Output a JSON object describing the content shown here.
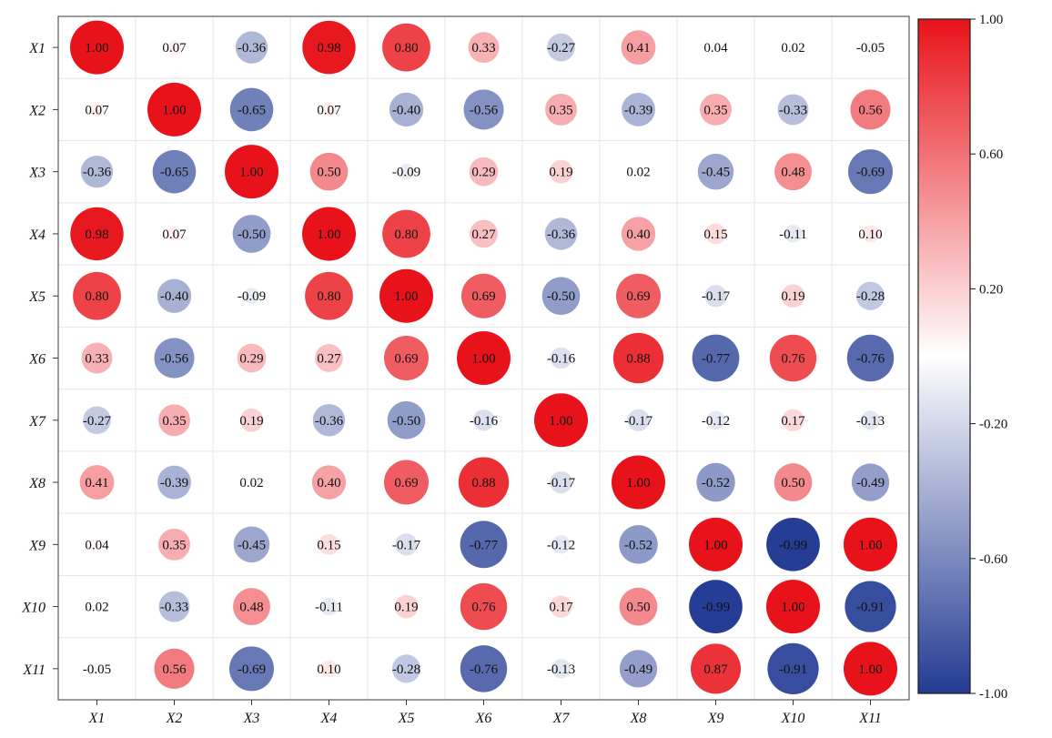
{
  "chart_data": {
    "type": "heatmap",
    "subtype": "correlation-circle-matrix",
    "title": "",
    "xlabel": "",
    "ylabel": "",
    "row_labels": [
      "X1",
      "X2",
      "X3",
      "X4",
      "X5",
      "X6",
      "X7",
      "X8",
      "X9",
      "X10",
      "X11"
    ],
    "col_labels": [
      "X1",
      "X2",
      "X3",
      "X4",
      "X5",
      "X6",
      "X7",
      "X8",
      "X9",
      "X10",
      "X11"
    ],
    "values": [
      [
        1.0,
        0.07,
        -0.36,
        0.98,
        0.8,
        0.33,
        -0.27,
        0.41,
        0.04,
        0.02,
        -0.05
      ],
      [
        0.07,
        1.0,
        -0.65,
        0.07,
        -0.4,
        -0.56,
        0.35,
        -0.39,
        0.35,
        -0.33,
        0.56
      ],
      [
        -0.36,
        -0.65,
        1.0,
        0.5,
        -0.09,
        0.29,
        0.19,
        0.02,
        -0.45,
        0.48,
        -0.69
      ],
      [
        0.98,
        0.07,
        -0.5,
        1.0,
        0.8,
        0.27,
        -0.36,
        0.4,
        0.15,
        -0.11,
        0.1
      ],
      [
        0.8,
        -0.4,
        -0.09,
        0.8,
        1.0,
        0.69,
        -0.5,
        0.69,
        -0.17,
        0.19,
        -0.28
      ],
      [
        0.33,
        -0.56,
        0.29,
        0.27,
        0.69,
        1.0,
        -0.16,
        0.88,
        -0.77,
        0.76,
        -0.76
      ],
      [
        -0.27,
        0.35,
        0.19,
        -0.36,
        -0.5,
        -0.16,
        1.0,
        -0.17,
        -0.12,
        0.17,
        -0.13
      ],
      [
        0.41,
        -0.39,
        0.02,
        0.4,
        0.69,
        0.88,
        -0.17,
        1.0,
        -0.52,
        0.5,
        -0.49
      ],
      [
        0.04,
        0.35,
        -0.45,
        0.15,
        -0.17,
        -0.77,
        -0.12,
        -0.52,
        1.0,
        -0.99,
        1.0
      ],
      [
        0.02,
        -0.33,
        0.48,
        -0.11,
        0.19,
        0.76,
        0.17,
        0.5,
        -0.99,
        1.0,
        -0.91
      ],
      [
        -0.05,
        0.56,
        -0.69,
        0.1,
        -0.28,
        -0.76,
        -0.13,
        -0.49,
        0.87,
        -0.91,
        1.0
      ]
    ],
    "value_labels": [
      [
        "1.00",
        "0.07",
        "-0.36",
        "0.98",
        "0.80",
        "0.33",
        "-0.27",
        "0.41",
        "0.04",
        "0.02",
        "-0.05"
      ],
      [
        "0.07",
        "1.00",
        "-0.65",
        "0.07",
        "-0.40",
        "-0.56",
        "0.35",
        "-0.39",
        "0.35",
        "-0.33",
        "0.56"
      ],
      [
        "-0.36",
        "-0.65",
        "1.00",
        "0.50",
        "-0.09",
        "0.29",
        "0.19",
        "0.02",
        "-0.45",
        "0.48",
        "-0.69"
      ],
      [
        "0.98",
        "0.07",
        "-0.50",
        "1.00",
        "0.80",
        "0.27",
        "-0.36",
        "0.40",
        "0.15",
        "-0.11",
        "0.10"
      ],
      [
        "0.80",
        "-0.40",
        "-0.09",
        "0.80",
        "1.00",
        "0.69",
        "-0.50",
        "0.69",
        "-0.17",
        "0.19",
        "-0.28"
      ],
      [
        "0.33",
        "-0.56",
        "0.29",
        "0.27",
        "0.69",
        "1.00",
        "-0.16",
        "0.88",
        "-0.77",
        "0.76",
        "-0.76"
      ],
      [
        "-0.27",
        "0.35",
        "0.19",
        "-0.36",
        "-0.50",
        "-0.16",
        "1.00",
        "-0.17",
        "-0.12",
        "0.17",
        "-0.13"
      ],
      [
        "0.41",
        "-0.39",
        "0.02",
        "0.40",
        "0.69",
        "0.88",
        "-0.17",
        "1.00",
        "-0.52",
        "0.50",
        "-0.49"
      ],
      [
        "0.04",
        "0.35",
        "-0.45",
        "0.15",
        "-0.17",
        "-0.77",
        "-0.12",
        "-0.52",
        "1.00",
        "-0.99",
        "1.00"
      ],
      [
        "0.02",
        "-0.33",
        "0.48",
        "-0.11",
        "0.19",
        "0.76",
        "0.17",
        "0.50",
        "-0.99",
        "1.00",
        "-0.91"
      ],
      [
        "-0.05",
        "0.56",
        "-0.69",
        "0.10",
        "-0.28",
        "-0.76",
        "-0.13",
        "-0.49",
        "0.87",
        "-0.91",
        "1.00"
      ]
    ],
    "colorbar": {
      "range": [
        -1.0,
        1.0
      ],
      "tick_values": [
        1.0,
        0.6,
        0.2,
        -0.2,
        -0.6,
        -1.0
      ],
      "tick_labels": [
        "1.00",
        "0.60",
        "0.20",
        "-0.20",
        "-0.60",
        "-1.00"
      ],
      "colors": {
        "negative": "#233b93",
        "neutral": "#ffffff",
        "positive": "#e8131a"
      }
    },
    "grid": true,
    "legend": "right"
  }
}
